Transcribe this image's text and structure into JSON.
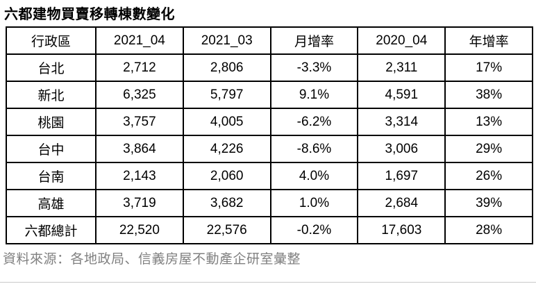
{
  "chart_data": {
    "type": "table",
    "title": "六都建物買賣移轉棟數變化",
    "columns": [
      "行政區",
      "2021_04",
      "2021_03",
      "月增率",
      "2020_04",
      "年增率"
    ],
    "rows": [
      [
        "台北",
        "2,712",
        "2,806",
        "-3.3%",
        "2,311",
        "17%"
      ],
      [
        "新北",
        "6,325",
        "5,797",
        "9.1%",
        "4,591",
        "38%"
      ],
      [
        "桃園",
        "3,757",
        "4,005",
        "-6.2%",
        "3,314",
        "13%"
      ],
      [
        "台中",
        "3,864",
        "4,226",
        "-8.6%",
        "3,006",
        "29%"
      ],
      [
        "台南",
        "2,143",
        "2,060",
        "4.0%",
        "1,697",
        "26%"
      ],
      [
        "高雄",
        "3,719",
        "3,682",
        "1.0%",
        "2,684",
        "39%"
      ],
      [
        "六都總計",
        "22,520",
        "22,576",
        "-0.2%",
        "17,603",
        "28%"
      ]
    ],
    "source_note": "資料來源：各地政局、信義房屋不動產企研室彙整",
    "layout": {
      "grid": "on",
      "header_row": true,
      "total_row_label": "六都總計"
    }
  },
  "colors": {
    "border": "#000000",
    "cell_text": "#000000",
    "title_text": "#000000",
    "source_text": "#808080",
    "bottom_rule": "#c9c9c9",
    "background": "#ffffff"
  }
}
